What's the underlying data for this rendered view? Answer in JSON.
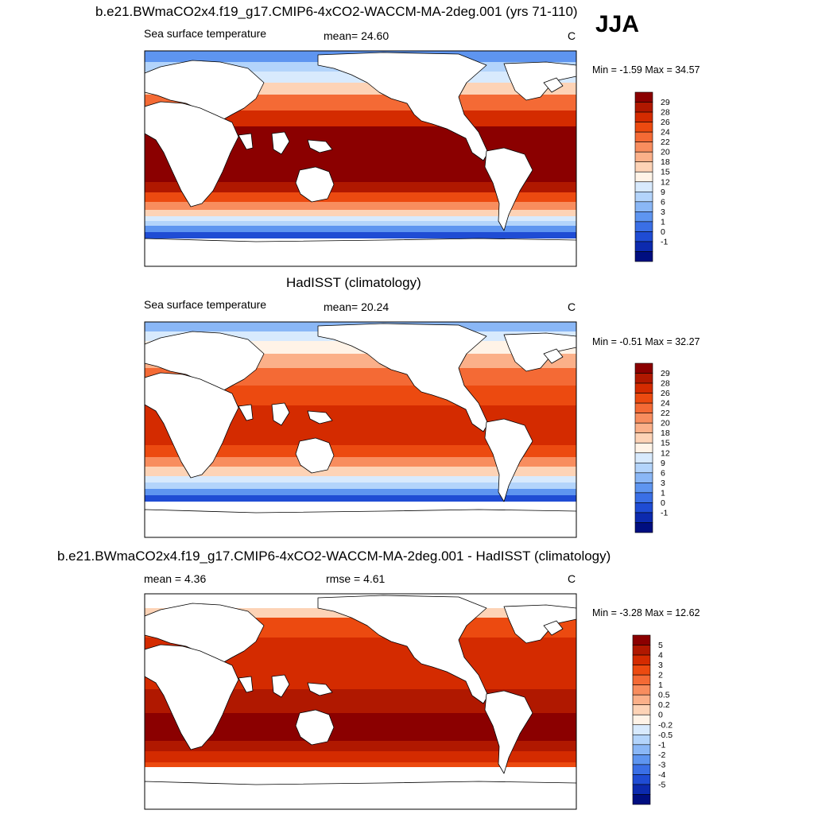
{
  "season": "JJA",
  "panels": [
    {
      "title": "b.e21.BWmaCO2x4.f19_g17.CMIP6-4xCO2-WACCM-MA-2deg.001 (yrs 71-110)",
      "left_label": "Sea surface temperature",
      "center_label": "mean=  24.60",
      "units": "C",
      "minmax": "Min =  -1.59 Max =  34.57",
      "map_style": "model"
    },
    {
      "title": "HadISST (climatology)",
      "left_label": "Sea surface temperature",
      "center_label": "mean=  20.24",
      "units": "C",
      "minmax": "Min =  -0.51 Max =  32.27",
      "map_style": "obs"
    },
    {
      "title": "b.e21.BWmaCO2x4.f19_g17.CMIP6-4xCO2-WACCM-MA-2deg.001 - HadISST (climatology)",
      "left_label": "mean =   4.36",
      "center_label": "rmse =   4.61",
      "units": "C",
      "minmax": "Min =  -3.28 Max =  12.62",
      "map_style": "diff"
    }
  ],
  "colorbars": {
    "sst": {
      "labels": [
        "29",
        "28",
        "26",
        "24",
        "22",
        "20",
        "18",
        "15",
        "12",
        "9",
        "6",
        "3",
        "1",
        "0",
        "-1"
      ],
      "colors": [
        "#8b0000",
        "#b01800",
        "#d42b00",
        "#ec4a10",
        "#f46a35",
        "#f88d5e",
        "#fbb089",
        "#fdd3b6",
        "#fff3e7",
        "#d8eafd",
        "#b3d4fb",
        "#8ab7f6",
        "#5e95f0",
        "#3a6fe6",
        "#1f4cd4",
        "#0c2aae",
        "#000e80"
      ]
    },
    "diff": {
      "labels": [
        "5",
        "4",
        "3",
        "2",
        "1",
        "0.5",
        "0.2",
        "0",
        "-0.2",
        "-0.5",
        "-1",
        "-2",
        "-3",
        "-4",
        "-5"
      ],
      "colors": [
        "#8b0000",
        "#b01800",
        "#d42b00",
        "#ec4a10",
        "#f46a35",
        "#f88d5e",
        "#fbb089",
        "#fdd3b6",
        "#fff3e7",
        "#d8eafd",
        "#b3d4fb",
        "#8ab7f6",
        "#5e95f0",
        "#3a6fe6",
        "#1f4cd4",
        "#0c2aae",
        "#000e80"
      ]
    }
  }
}
